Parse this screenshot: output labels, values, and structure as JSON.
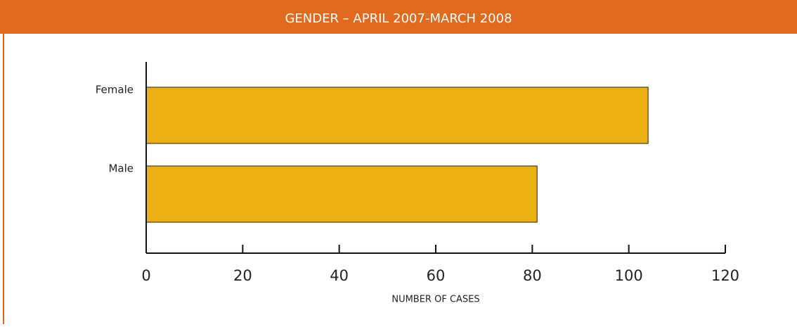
{
  "chart_data": {
    "type": "bar",
    "orientation": "horizontal",
    "title": "GENDER – APRIL 2007-MARCH 2008",
    "categories": [
      "Female",
      "Male"
    ],
    "values": [
      104,
      81
    ],
    "color": "#ebb012",
    "xlim": [
      0,
      120
    ],
    "xticks": [
      0,
      20,
      40,
      60,
      80,
      100,
      120
    ],
    "xlabel": "NUMBER OF CASES"
  }
}
